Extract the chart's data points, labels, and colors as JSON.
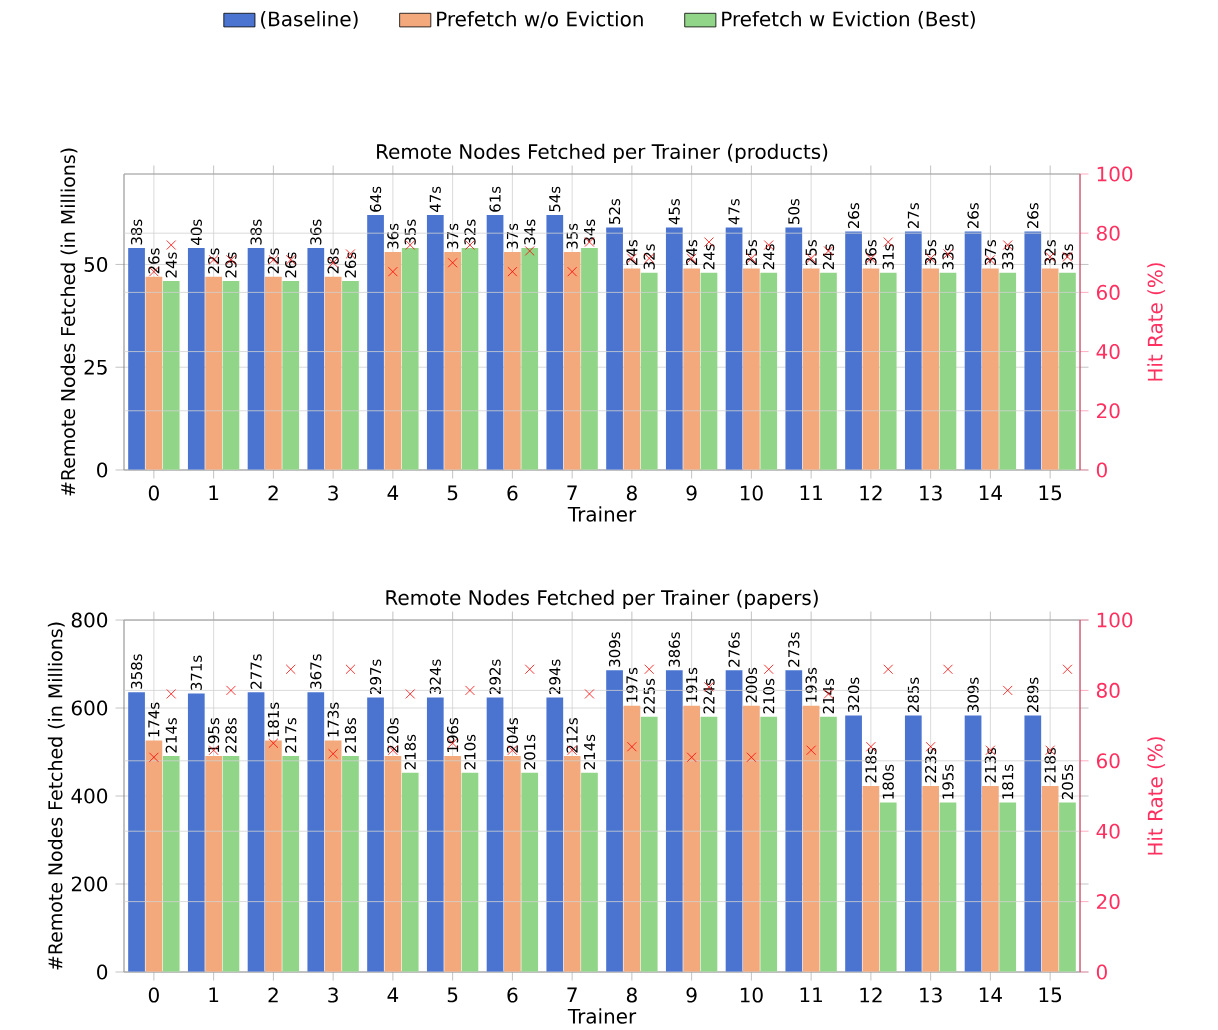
{
  "chart_data": [
    {
      "type": "bar",
      "title": "Remote Nodes Fetched per Trainer (products)",
      "xlabel": "Trainer",
      "ylabel": "#Remote Nodes Fetched (in Millions)",
      "y2label": "Hit Rate (%)",
      "categories": [
        "0",
        "1",
        "2",
        "3",
        "4",
        "5",
        "6",
        "7",
        "8",
        "9",
        "10",
        "11",
        "12",
        "13",
        "14",
        "15"
      ],
      "ylim": [
        0,
        72
      ],
      "yticks": [
        0,
        25,
        50
      ],
      "y2lim": [
        0,
        100
      ],
      "y2ticks": [
        0,
        20,
        40,
        60,
        80,
        100
      ],
      "grid": true,
      "legend": "top",
      "series": [
        {
          "name": "(Baseline)",
          "color": "#4a74d0",
          "values": [
            54,
            54,
            54,
            54,
            62,
            62,
            62,
            62,
            59,
            59,
            59,
            59,
            58,
            58,
            58,
            58
          ]
        },
        {
          "name": "Prefetch w/o Eviction",
          "color": "#f4a97c",
          "values": [
            47,
            47,
            47,
            47,
            53,
            53,
            53,
            53,
            49,
            49,
            49,
            49,
            49,
            49,
            49,
            49
          ]
        },
        {
          "name": "Prefetch w Eviction (Best)",
          "color": "#91d688",
          "values": [
            46,
            46,
            46,
            46,
            54,
            54,
            54,
            54,
            48,
            48,
            48,
            48,
            48,
            48,
            48,
            48
          ]
        },
        {
          "type": "scatter",
          "axis": "y2",
          "marker": "cross",
          "color": "#ff0000",
          "x": [
            "0",
            "1",
            "2",
            "3",
            "4",
            "5",
            "6",
            "7",
            "8",
            "9",
            "10",
            "11",
            "12",
            "13",
            "14",
            "15"
          ],
          "values": [
            67,
            71,
            71,
            70,
            67,
            70,
            67,
            67,
            71.5,
            71.5,
            71.5,
            71.5,
            71.5,
            71.5,
            71,
            72
          ]
        },
        {
          "type": "scatter",
          "axis": "y2",
          "marker": "cross",
          "color": "#ff0000",
          "x": [
            "0",
            "1",
            "2",
            "3",
            "4",
            "5",
            "6",
            "7",
            "8",
            "9",
            "10",
            "11",
            "12",
            "13",
            "14",
            "15"
          ],
          "values": [
            76,
            71,
            71,
            73,
            76,
            76,
            74,
            77,
            71.5,
            77,
            76,
            74,
            77,
            73,
            76,
            72
          ]
        }
      ],
      "annotations": [
        {
          "text": "38s",
          "x": "0",
          "y": 54
        },
        {
          "text": "26s",
          "x": "0",
          "y": 47
        },
        {
          "text": "24s",
          "x": "0",
          "y": 46
        },
        {
          "text": "40s",
          "x": "1",
          "y": 54
        },
        {
          "text": "22s",
          "x": "1",
          "y": 47
        },
        {
          "text": "29s",
          "x": "1",
          "y": 46
        },
        {
          "text": "38s",
          "x": "2",
          "y": 54
        },
        {
          "text": "22s",
          "x": "2",
          "y": 47
        },
        {
          "text": "26s",
          "x": "2",
          "y": 46
        },
        {
          "text": "36s",
          "x": "3",
          "y": 54
        },
        {
          "text": "28s",
          "x": "3",
          "y": 47
        },
        {
          "text": "26s",
          "x": "3",
          "y": 46
        },
        {
          "text": "64s",
          "x": "4",
          "y": 62
        },
        {
          "text": "36s",
          "x": "4",
          "y": 53
        },
        {
          "text": "35s",
          "x": "4",
          "y": 54
        },
        {
          "text": "47s",
          "x": "5",
          "y": 62
        },
        {
          "text": "37s",
          "x": "5",
          "y": 53
        },
        {
          "text": "32s",
          "x": "5",
          "y": 54
        },
        {
          "text": "61s",
          "x": "6",
          "y": 62
        },
        {
          "text": "37s",
          "x": "6",
          "y": 53
        },
        {
          "text": "34s",
          "x": "6",
          "y": 54
        },
        {
          "text": "54s",
          "x": "7",
          "y": 62
        },
        {
          "text": "35s",
          "x": "7",
          "y": 53
        },
        {
          "text": "34s",
          "x": "7",
          "y": 54
        },
        {
          "text": "52s",
          "x": "8",
          "y": 59
        },
        {
          "text": "24s",
          "x": "8",
          "y": 49
        },
        {
          "text": "32s",
          "x": "8",
          "y": 48
        },
        {
          "text": "45s",
          "x": "9",
          "y": 59
        },
        {
          "text": "24s",
          "x": "9",
          "y": 49
        },
        {
          "text": "24s",
          "x": "9",
          "y": 48
        },
        {
          "text": "47s",
          "x": "10",
          "y": 59
        },
        {
          "text": "25s",
          "x": "10",
          "y": 49
        },
        {
          "text": "24s",
          "x": "10",
          "y": 48
        },
        {
          "text": "50s",
          "x": "11",
          "y": 59
        },
        {
          "text": "25s",
          "x": "11",
          "y": 49
        },
        {
          "text": "24s",
          "x": "11",
          "y": 48
        },
        {
          "text": "26s",
          "x": "12",
          "y": 58
        },
        {
          "text": "36s",
          "x": "12",
          "y": 49
        },
        {
          "text": "31s",
          "x": "12",
          "y": 48
        },
        {
          "text": "27s",
          "x": "13",
          "y": 58
        },
        {
          "text": "35s",
          "x": "13",
          "y": 49
        },
        {
          "text": "33s",
          "x": "13",
          "y": 48
        },
        {
          "text": "26s",
          "x": "14",
          "y": 58
        },
        {
          "text": "37s",
          "x": "14",
          "y": 49
        },
        {
          "text": "33s",
          "x": "14",
          "y": 48
        },
        {
          "text": "26s",
          "x": "15",
          "y": 58
        },
        {
          "text": "32s",
          "x": "15",
          "y": 49
        },
        {
          "text": "33s",
          "x": "15",
          "y": 48
        }
      ]
    },
    {
      "type": "bar",
      "title": "Remote Nodes Fetched per Trainer (papers)",
      "xlabel": "Trainer",
      "ylabel": "#Remote Nodes Fetched (in Millions)",
      "y2label": "Hit Rate (%)",
      "categories": [
        "0",
        "1",
        "2",
        "3",
        "4",
        "5",
        "6",
        "7",
        "8",
        "9",
        "10",
        "11",
        "12",
        "13",
        "14",
        "15"
      ],
      "ylim": [
        0,
        800
      ],
      "yticks": [
        0,
        200,
        400,
        600,
        800
      ],
      "y2lim": [
        0,
        100
      ],
      "y2ticks": [
        0,
        20,
        40,
        60,
        80,
        100
      ],
      "grid": true,
      "series": [
        {
          "color": "#4a74d0",
          "values": [
            636,
            633,
            636,
            636,
            624,
            624,
            624,
            624,
            686,
            686,
            686,
            686,
            583,
            583,
            583,
            583
          ]
        },
        {
          "color": "#f4a97c",
          "values": [
            526,
            491,
            526,
            526,
            491,
            491,
            491,
            491,
            605,
            605,
            605,
            605,
            423,
            423,
            423,
            423
          ]
        },
        {
          "color": "#91d688",
          "values": [
            491,
            491,
            491,
            491,
            453,
            453,
            453,
            453,
            580,
            580,
            580,
            580,
            385,
            385,
            385,
            385
          ]
        },
        {
          "type": "scatter",
          "axis": "y2",
          "marker": "cross",
          "color": "#ff0000",
          "x": [
            "0",
            "1",
            "2",
            "3",
            "4",
            "5",
            "6",
            "7",
            "8",
            "9",
            "10",
            "11",
            "12",
            "13",
            "14",
            "15"
          ],
          "values": [
            61,
            63,
            65,
            62,
            63,
            65,
            63,
            63,
            64,
            61,
            61,
            63,
            64,
            64,
            63,
            63
          ]
        },
        {
          "type": "scatter",
          "axis": "y2",
          "marker": "cross",
          "color": "#ff0000",
          "x": [
            "0",
            "1",
            "2",
            "3",
            "4",
            "5",
            "6",
            "7",
            "8",
            "9",
            "10",
            "11",
            "12",
            "13",
            "14",
            "15"
          ],
          "values": [
            79,
            80,
            86,
            86,
            79,
            80,
            86,
            79,
            86,
            81,
            86,
            79,
            86,
            86,
            80,
            86
          ]
        }
      ],
      "annotations": [
        {
          "text": "358s",
          "x": "0",
          "y": 636
        },
        {
          "text": "174s",
          "x": "0",
          "y": 526
        },
        {
          "text": "214s",
          "x": "0",
          "y": 491
        },
        {
          "text": "371s",
          "x": "1",
          "y": 633
        },
        {
          "text": "195s",
          "x": "1",
          "y": 491
        },
        {
          "text": "228s",
          "x": "1",
          "y": 491
        },
        {
          "text": "277s",
          "x": "2",
          "y": 636
        },
        {
          "text": "181s",
          "x": "2",
          "y": 526
        },
        {
          "text": "217s",
          "x": "2",
          "y": 491
        },
        {
          "text": "367s",
          "x": "3",
          "y": 636
        },
        {
          "text": "173s",
          "x": "3",
          "y": 526
        },
        {
          "text": "218s",
          "x": "3",
          "y": 491
        },
        {
          "text": "297s",
          "x": "4",
          "y": 624
        },
        {
          "text": "220s",
          "x": "4",
          "y": 491
        },
        {
          "text": "218s",
          "x": "4",
          "y": 453
        },
        {
          "text": "324s",
          "x": "5",
          "y": 624
        },
        {
          "text": "196s",
          "x": "5",
          "y": 491
        },
        {
          "text": "210s",
          "x": "5",
          "y": 453
        },
        {
          "text": "292s",
          "x": "6",
          "y": 624
        },
        {
          "text": "204s",
          "x": "6",
          "y": 491
        },
        {
          "text": "201s",
          "x": "6",
          "y": 453
        },
        {
          "text": "294s",
          "x": "7",
          "y": 624
        },
        {
          "text": "212s",
          "x": "7",
          "y": 491
        },
        {
          "text": "214s",
          "x": "7",
          "y": 453
        },
        {
          "text": "309s",
          "x": "8",
          "y": 686
        },
        {
          "text": "197s",
          "x": "8",
          "y": 605
        },
        {
          "text": "225s",
          "x": "8",
          "y": 580
        },
        {
          "text": "386s",
          "x": "9",
          "y": 686
        },
        {
          "text": "191s",
          "x": "9",
          "y": 605
        },
        {
          "text": "224s",
          "x": "9",
          "y": 580
        },
        {
          "text": "276s",
          "x": "10",
          "y": 686
        },
        {
          "text": "200s",
          "x": "10",
          "y": 605
        },
        {
          "text": "210s",
          "x": "10",
          "y": 580
        },
        {
          "text": "273s",
          "x": "11",
          "y": 686
        },
        {
          "text": "193s",
          "x": "11",
          "y": 605
        },
        {
          "text": "214s",
          "x": "11",
          "y": 580
        },
        {
          "text": "320s",
          "x": "12",
          "y": 583
        },
        {
          "text": "218s",
          "x": "12",
          "y": 423
        },
        {
          "text": "180s",
          "x": "12",
          "y": 385
        },
        {
          "text": "285s",
          "x": "13",
          "y": 583
        },
        {
          "text": "223s",
          "x": "13",
          "y": 423
        },
        {
          "text": "195s",
          "x": "13",
          "y": 385
        },
        {
          "text": "309s",
          "x": "14",
          "y": 583
        },
        {
          "text": "213s",
          "x": "14",
          "y": 423
        },
        {
          "text": "181s",
          "x": "14",
          "y": 385
        },
        {
          "text": "289s",
          "x": "15",
          "y": 583
        },
        {
          "text": "218s",
          "x": "15",
          "y": 423
        },
        {
          "text": "205s",
          "x": "15",
          "y": 385
        }
      ]
    }
  ]
}
